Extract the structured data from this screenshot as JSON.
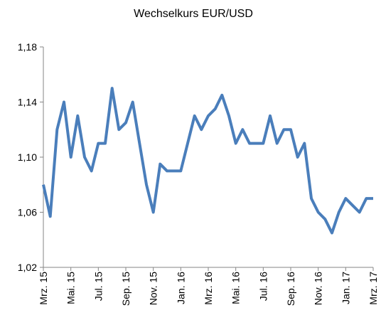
{
  "chart_data": {
    "type": "line",
    "title": "Wechselkurs EUR/USD",
    "categories": [
      "Mrz. 15",
      null,
      null,
      null,
      "Mai. 15",
      null,
      null,
      null,
      "Jul. 15",
      null,
      null,
      null,
      "Sep. 15",
      null,
      null,
      null,
      "Nov. 15",
      null,
      null,
      null,
      "Jan. 16",
      null,
      null,
      null,
      "Mrz. 16",
      null,
      null,
      null,
      "Mai. 16",
      null,
      null,
      null,
      "Jul. 16",
      null,
      null,
      null,
      "Sep. 16",
      null,
      null,
      null,
      "Nov. 16",
      null,
      null,
      null,
      "Jan. 17",
      null,
      null,
      null,
      "Mrz. 17"
    ],
    "series": [
      {
        "name": "EUR/USD",
        "color": "#4a7ebb",
        "values": [
          1.08,
          1.057,
          1.12,
          1.14,
          1.1,
          1.13,
          1.1,
          1.09,
          1.11,
          1.11,
          1.15,
          1.12,
          1.125,
          1.14,
          1.11,
          1.08,
          1.06,
          1.095,
          1.09,
          1.09,
          1.09,
          1.11,
          1.13,
          1.12,
          1.13,
          1.135,
          1.145,
          1.13,
          1.11,
          1.12,
          1.11,
          1.11,
          1.11,
          1.13,
          1.11,
          1.12,
          1.12,
          1.1,
          1.11,
          1.07,
          1.06,
          1.055,
          1.045,
          1.06,
          1.07,
          1.065,
          1.06,
          1.07,
          1.07
        ]
      }
    ],
    "ylim": [
      1.02,
      1.18
    ],
    "yticks": [
      {
        "value": 1.02,
        "label": "1,02"
      },
      {
        "value": 1.06,
        "label": "1,06"
      },
      {
        "value": 1.1,
        "label": "1,10"
      },
      {
        "value": 1.14,
        "label": "1,14"
      },
      {
        "value": 1.18,
        "label": "1,18"
      }
    ]
  }
}
